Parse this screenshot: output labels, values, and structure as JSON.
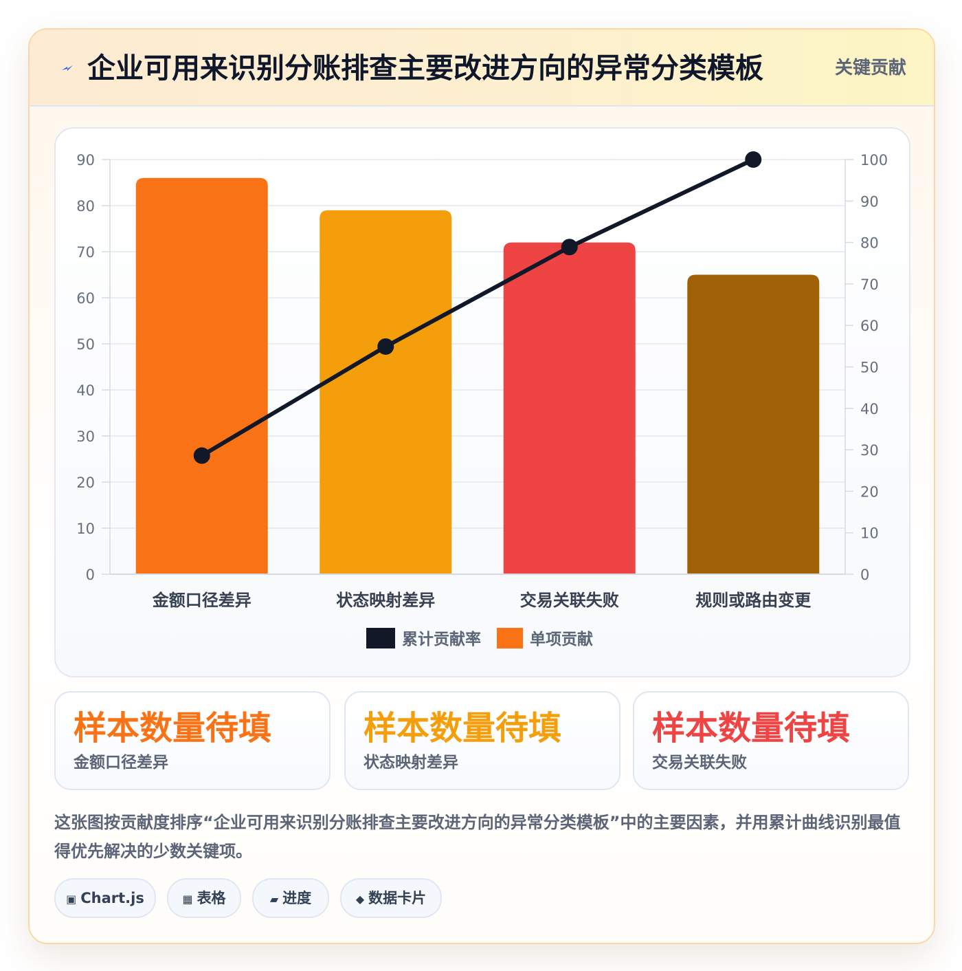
{
  "header": {
    "title": "企业可用来识别分账排查主要改进方向的异常分类模板",
    "tag": "关键贡献",
    "icon": "lightning-bolt-icon"
  },
  "chart_data": {
    "type": "bar",
    "categories": [
      "金额口径差异",
      "状态映射差异",
      "交易关联失败",
      "规则或路由变更"
    ],
    "series": [
      {
        "name": "单项贡献",
        "kind": "bar",
        "axis": "left",
        "values": [
          86,
          79,
          72,
          65
        ],
        "colors": [
          "#f97316",
          "#f59e0b",
          "#ef4444",
          "#a16207"
        ]
      },
      {
        "name": "累计贡献率",
        "kind": "line",
        "axis": "right",
        "values": [
          28.6,
          54.9,
          78.9,
          100
        ],
        "color": "#111827"
      }
    ],
    "y_left": {
      "min": 0,
      "max": 90,
      "ticks": [
        "0",
        "10",
        "20",
        "30",
        "40",
        "50",
        "60",
        "70",
        "80",
        "90"
      ]
    },
    "y_right": {
      "min": 0,
      "max": 100,
      "ticks": [
        "0",
        "10",
        "20",
        "30",
        "40",
        "50",
        "60",
        "70",
        "80",
        "90",
        "100"
      ]
    },
    "legend": [
      {
        "label": "累计贡献率",
        "color": "#111827"
      },
      {
        "label": "单项贡献",
        "color": "#f97316"
      }
    ],
    "legend_position": "bottom",
    "grid": true
  },
  "kpis": [
    {
      "value": "样本数量待填",
      "label": "金额口径差异",
      "color": "#f97316"
    },
    {
      "value": "样本数量待填",
      "label": "状态映射差异",
      "color": "#f59e0b"
    },
    {
      "value": "样本数量待填",
      "label": "交易关联失败",
      "color": "#ef4444"
    }
  ],
  "description": "这张图按贡献度排序“企业可用来识别分账排查主要改进方向的异常分类模板”中的主要因素，并用累计曲线识别最值得优先解决的少数关键项。",
  "chips": [
    {
      "icon": "▣",
      "label": "Chart.js"
    },
    {
      "icon": "▦",
      "label": "表格"
    },
    {
      "icon": "▰",
      "label": "进度"
    },
    {
      "icon": "◆",
      "label": "数据卡片"
    }
  ]
}
